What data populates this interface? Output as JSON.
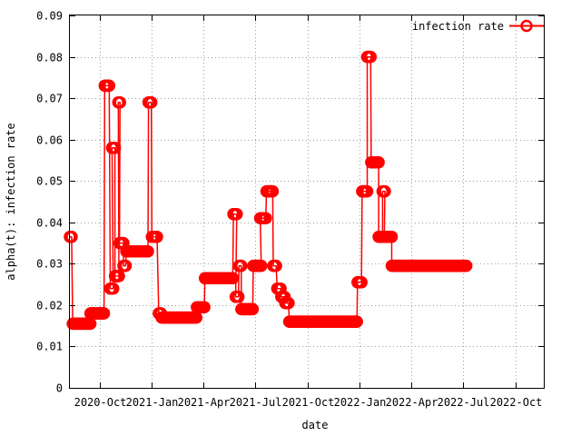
{
  "chart_data": {
    "type": "line",
    "xlabel": "date",
    "ylabel": "alpha(t): infection rate",
    "xlim": [
      "2020-08-10",
      "2022-11-20"
    ],
    "ylim": [
      0,
      0.09
    ],
    "y_ticks": [
      {
        "value": 0,
        "label": "0"
      },
      {
        "value": 0.01,
        "label": "0.01"
      },
      {
        "value": 0.02,
        "label": "0.02"
      },
      {
        "value": 0.03,
        "label": "0.03"
      },
      {
        "value": 0.04,
        "label": "0.04"
      },
      {
        "value": 0.05,
        "label": "0.05"
      },
      {
        "value": 0.06,
        "label": "0.06"
      },
      {
        "value": 0.07,
        "label": "0.07"
      },
      {
        "value": 0.08,
        "label": "0.08"
      },
      {
        "value": 0.09,
        "label": "0.09"
      }
    ],
    "x_ticks": [
      {
        "value": "2020-10-01",
        "label": "2020-Oct"
      },
      {
        "value": "2021-01-01",
        "label": "2021-Jan"
      },
      {
        "value": "2021-04-01",
        "label": "2021-Apr"
      },
      {
        "value": "2021-07-01",
        "label": "2021-Jul"
      },
      {
        "value": "2021-10-01",
        "label": "2021-Oct"
      },
      {
        "value": "2022-01-01",
        "label": "2022-Jan"
      },
      {
        "value": "2022-04-01",
        "label": "2022-Apr"
      },
      {
        "value": "2022-07-01",
        "label": "2022-Jul"
      },
      {
        "value": "2022-10-01",
        "label": "2022-Oct"
      }
    ],
    "grid": true,
    "legend_position": "top-right",
    "series": [
      {
        "name": "infection rate",
        "color": "#ff0000",
        "marker": "circle",
        "step": true,
        "segments": [
          {
            "start": "2020-08-10",
            "end": "2020-08-13",
            "value": 0.0365
          },
          {
            "start": "2020-08-15",
            "end": "2020-09-15",
            "value": 0.0155
          },
          {
            "start": "2020-09-15",
            "end": "2020-10-09",
            "value": 0.018
          },
          {
            "start": "2020-10-10",
            "end": "2020-10-18",
            "value": 0.073
          },
          {
            "start": "2020-10-20",
            "end": "2020-10-25",
            "value": 0.024
          },
          {
            "start": "2020-10-23",
            "end": "2020-10-28",
            "value": 0.058
          },
          {
            "start": "2020-10-28",
            "end": "2020-11-04",
            "value": 0.027
          },
          {
            "start": "2020-11-03",
            "end": "2020-11-06",
            "value": 0.069
          },
          {
            "start": "2020-11-05",
            "end": "2020-11-12",
            "value": 0.035
          },
          {
            "start": "2020-11-12",
            "end": "2020-11-16",
            "value": 0.0295
          },
          {
            "start": "2020-11-17",
            "end": "2020-12-25",
            "value": 0.033
          },
          {
            "start": "2020-12-26",
            "end": "2020-12-31",
            "value": 0.069
          },
          {
            "start": "2021-01-01",
            "end": "2021-01-10",
            "value": 0.0365
          },
          {
            "start": "2021-01-13",
            "end": "2021-01-17",
            "value": 0.018
          },
          {
            "start": "2021-01-18",
            "end": "2021-03-20",
            "value": 0.017
          },
          {
            "start": "2021-03-21",
            "end": "2021-04-03",
            "value": 0.0195
          },
          {
            "start": "2021-04-04",
            "end": "2021-05-23",
            "value": 0.0265
          },
          {
            "start": "2021-05-24",
            "end": "2021-05-30",
            "value": 0.042
          },
          {
            "start": "2021-05-28",
            "end": "2021-06-02",
            "value": 0.022
          },
          {
            "start": "2021-06-03",
            "end": "2021-06-07",
            "value": 0.0295
          },
          {
            "start": "2021-06-07",
            "end": "2021-06-27",
            "value": 0.019
          },
          {
            "start": "2021-06-28",
            "end": "2021-07-12",
            "value": 0.0295
          },
          {
            "start": "2021-07-10",
            "end": "2021-07-20",
            "value": 0.041
          },
          {
            "start": "2021-07-21",
            "end": "2021-08-01",
            "value": 0.0475
          },
          {
            "start": "2021-08-02",
            "end": "2021-08-07",
            "value": 0.0295
          },
          {
            "start": "2021-08-09",
            "end": "2021-08-15",
            "value": 0.024
          },
          {
            "start": "2021-08-16",
            "end": "2021-08-22",
            "value": 0.022
          },
          {
            "start": "2021-08-23",
            "end": "2021-08-29",
            "value": 0.0205
          },
          {
            "start": "2021-08-30",
            "end": "2021-12-27",
            "value": 0.016
          },
          {
            "start": "2021-12-28",
            "end": "2022-01-04",
            "value": 0.0255
          },
          {
            "start": "2022-01-05",
            "end": "2022-01-14",
            "value": 0.0475
          },
          {
            "start": "2022-01-14",
            "end": "2022-01-20",
            "value": 0.08
          },
          {
            "start": "2022-01-21",
            "end": "2022-02-03",
            "value": 0.0545
          },
          {
            "start": "2022-02-03",
            "end": "2022-02-10",
            "value": 0.0365
          },
          {
            "start": "2022-02-10",
            "end": "2022-02-14",
            "value": 0.0475
          },
          {
            "start": "2022-02-13",
            "end": "2022-02-26",
            "value": 0.0365
          },
          {
            "start": "2022-02-26",
            "end": "2022-07-07",
            "value": 0.0295
          }
        ]
      }
    ]
  }
}
